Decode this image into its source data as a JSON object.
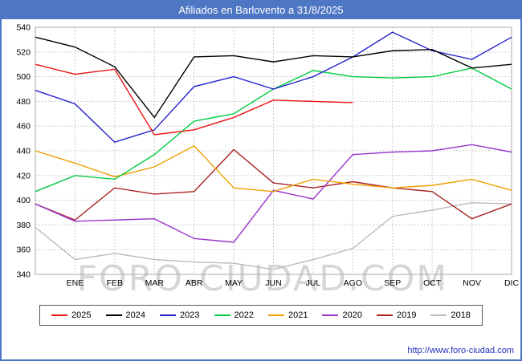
{
  "title": "Afiliados en Barlovento a 31/8/2025",
  "watermark": "FORO-CIUDAD.COM",
  "footer_url": "http://www.foro-ciudad.com",
  "colors": {
    "titlebar": "#4d76c3",
    "grid": "#cccccc",
    "plot_border": "#aaaaaa",
    "axis_text": "#000000",
    "watermark": "#cdcdcd",
    "footer_link": "#2233bb"
  },
  "chart_data": {
    "type": "line",
    "title": "Afiliados en Barlovento a 31/8/2025",
    "categories": [
      "",
      "ENE",
      "FEB",
      "MAR",
      "ABR",
      "MAY",
      "JUN",
      "JUL",
      "AGO",
      "SEP",
      "OCT",
      "NOV",
      "DIC"
    ],
    "ylim": [
      340,
      540
    ],
    "ytick_step": 20,
    "grid": true,
    "legend_position": "bottom",
    "series": [
      {
        "name": "2025",
        "color": "#ee1111",
        "values": [
          510,
          502,
          506,
          453,
          457,
          467,
          481,
          480,
          479
        ]
      },
      {
        "name": "2024",
        "color": "#000000",
        "values": [
          532,
          524,
          508,
          467,
          516,
          517,
          512,
          517,
          516,
          521,
          522,
          507,
          510
        ]
      },
      {
        "name": "2023",
        "color": "#2222cc",
        "values": [
          489,
          478,
          447,
          457,
          492,
          500,
          490,
          500,
          516,
          536,
          521,
          514,
          532
        ]
      },
      {
        "name": "2022",
        "color": "#00cc44",
        "values": [
          407,
          420,
          417,
          437,
          464,
          470,
          490,
          505,
          500,
          499,
          500,
          507,
          490
        ]
      },
      {
        "name": "2021",
        "color": "#eea000",
        "values": [
          440,
          430,
          419,
          427,
          444,
          410,
          407,
          417,
          413,
          410,
          412,
          417,
          408
        ]
      },
      {
        "name": "2020",
        "color": "#9933cc",
        "values": [
          397,
          383,
          384,
          385,
          369,
          366,
          408,
          401,
          437,
          439,
          440,
          445,
          439
        ]
      },
      {
        "name": "2019",
        "color": "#aa2222",
        "values": [
          397,
          384,
          410,
          405,
          407,
          441,
          414,
          410,
          415,
          410,
          407,
          385,
          397
        ]
      },
      {
        "name": "2018",
        "color": "#bbbbbb",
        "values": [
          378,
          352,
          357,
          352,
          350,
          349,
          344,
          352,
          361,
          387,
          392,
          398,
          397
        ]
      }
    ]
  }
}
